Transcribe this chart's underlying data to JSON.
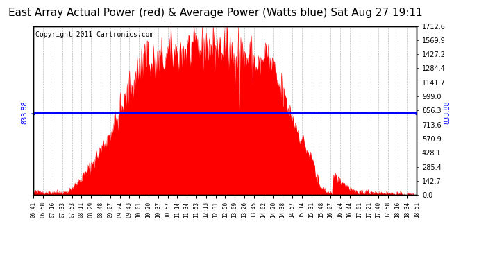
{
  "title": "East Array Actual Power (red) & Average Power (Watts blue) Sat Aug 27 19:11",
  "copyright": "Copyright 2011 Cartronics.com",
  "avg_power": 833.88,
  "y_max": 1712.6,
  "y_ticks": [
    0.0,
    142.7,
    285.4,
    428.1,
    570.9,
    713.6,
    856.3,
    999.0,
    1141.7,
    1284.4,
    1427.2,
    1569.9,
    1712.6
  ],
  "x_labels": [
    "06:41",
    "06:58",
    "07:16",
    "07:33",
    "07:53",
    "08:11",
    "08:29",
    "08:48",
    "09:07",
    "09:24",
    "09:43",
    "10:01",
    "10:20",
    "10:37",
    "10:57",
    "11:14",
    "11:34",
    "11:53",
    "12:13",
    "12:31",
    "12:50",
    "13:09",
    "13:26",
    "13:45",
    "14:02",
    "14:20",
    "14:38",
    "14:57",
    "15:14",
    "15:31",
    "15:48",
    "16:07",
    "16:24",
    "16:44",
    "17:01",
    "17:21",
    "17:40",
    "17:58",
    "18:16",
    "18:34",
    "18:51"
  ],
  "fill_color": "#FF0000",
  "line_color": "#0000FF",
  "bg_color": "#FFFFFF",
  "grid_color": "#AAAAAA",
  "title_fontsize": 11,
  "copyright_fontsize": 7,
  "left_ytick_fontsize": 7,
  "right_ytick_fontsize": 7,
  "xtick_fontsize": 5.5
}
